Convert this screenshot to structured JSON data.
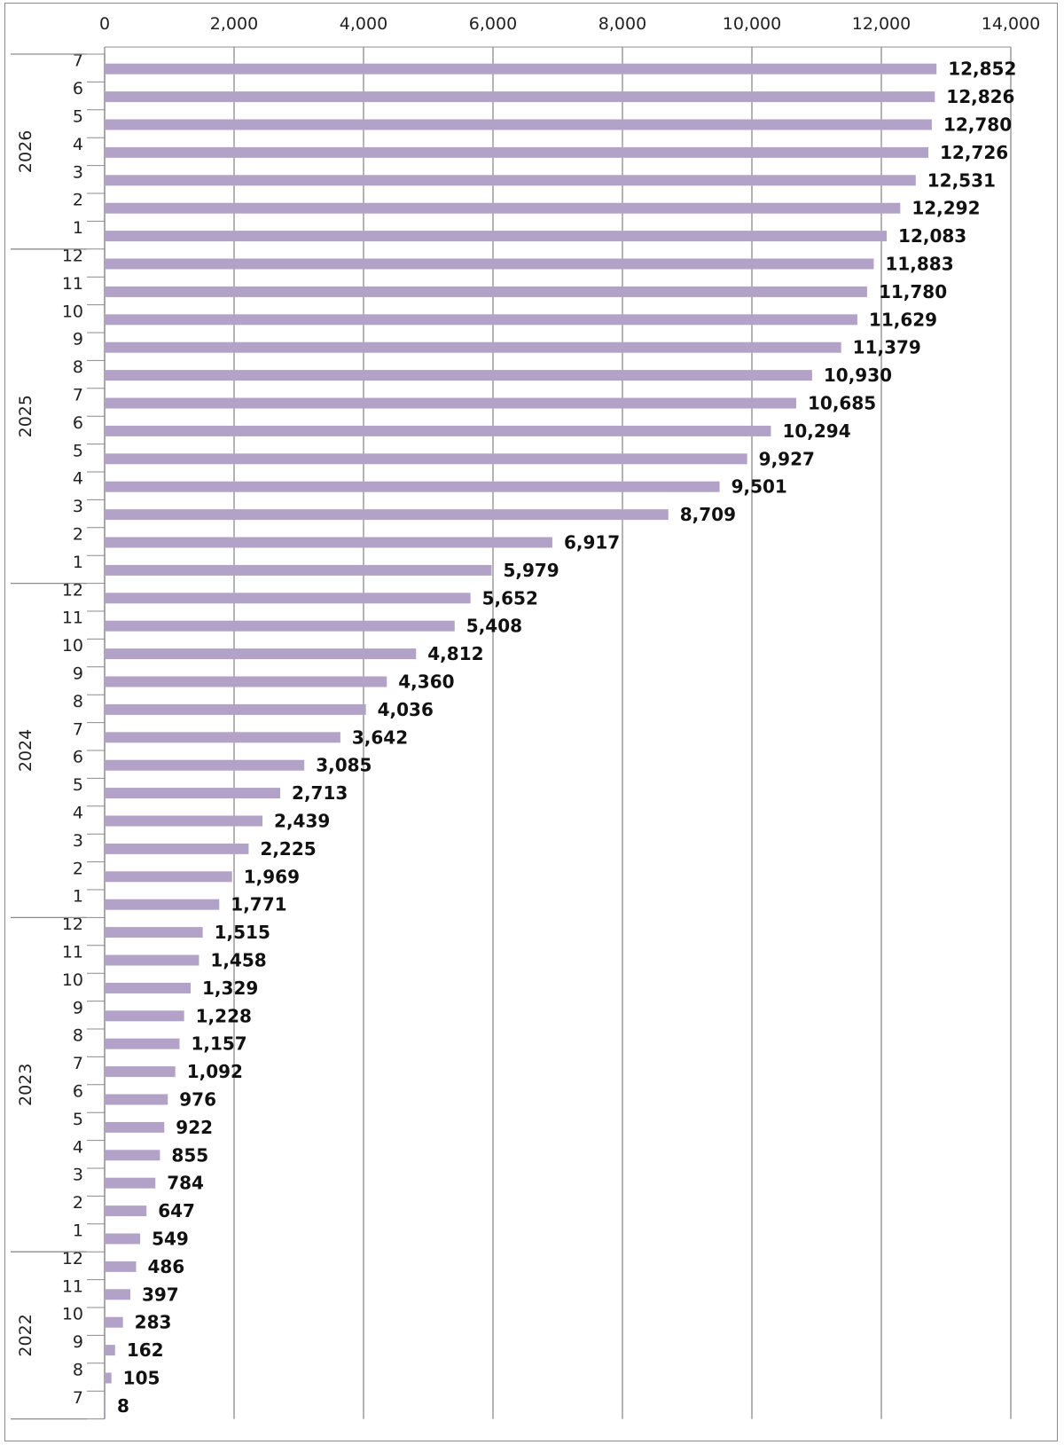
{
  "chart_data": {
    "type": "bar",
    "orientation": "horizontal",
    "title": "",
    "xlabel": "",
    "ylabel": "",
    "xlim": [
      0,
      14000
    ],
    "x_ticks": [
      "0",
      "2,000",
      "4,000",
      "6,000",
      "8,000",
      "10,000",
      "12,000",
      "14,000"
    ],
    "x_tick_values": [
      0,
      2000,
      4000,
      6000,
      8000,
      10000,
      12000,
      14000
    ],
    "x_axis_position": "top",
    "grid": "vertical",
    "legend": "none",
    "bar_color": "#b3a2c8",
    "categories": [
      {
        "year": "2026",
        "month": "7",
        "value": 12852,
        "label": "12,852"
      },
      {
        "year": "2026",
        "month": "6",
        "value": 12826,
        "label": "12,826"
      },
      {
        "year": "2026",
        "month": "5",
        "value": 12780,
        "label": "12,780"
      },
      {
        "year": "2026",
        "month": "4",
        "value": 12726,
        "label": "12,726"
      },
      {
        "year": "2026",
        "month": "3",
        "value": 12531,
        "label": "12,531"
      },
      {
        "year": "2026",
        "month": "2",
        "value": 12292,
        "label": "12,292"
      },
      {
        "year": "2026",
        "month": "1",
        "value": 12083,
        "label": "12,083"
      },
      {
        "year": "2025",
        "month": "12",
        "value": 11883,
        "label": "11,883"
      },
      {
        "year": "2025",
        "month": "11",
        "value": 11780,
        "label": "11,780"
      },
      {
        "year": "2025",
        "month": "10",
        "value": 11629,
        "label": "11,629"
      },
      {
        "year": "2025",
        "month": "9",
        "value": 11379,
        "label": "11,379"
      },
      {
        "year": "2025",
        "month": "8",
        "value": 10930,
        "label": "10,930"
      },
      {
        "year": "2025",
        "month": "7",
        "value": 10685,
        "label": "10,685"
      },
      {
        "year": "2025",
        "month": "6",
        "value": 10294,
        "label": "10,294"
      },
      {
        "year": "2025",
        "month": "5",
        "value": 9927,
        "label": "9,927"
      },
      {
        "year": "2025",
        "month": "4",
        "value": 9501,
        "label": "9,501"
      },
      {
        "year": "2025",
        "month": "3",
        "value": 8709,
        "label": "8,709"
      },
      {
        "year": "2025",
        "month": "2",
        "value": 6917,
        "label": "6,917"
      },
      {
        "year": "2025",
        "month": "1",
        "value": 5979,
        "label": "5,979"
      },
      {
        "year": "2024",
        "month": "12",
        "value": 5652,
        "label": "5,652"
      },
      {
        "year": "2024",
        "month": "11",
        "value": 5408,
        "label": "5,408"
      },
      {
        "year": "2024",
        "month": "10",
        "value": 4812,
        "label": "4,812"
      },
      {
        "year": "2024",
        "month": "9",
        "value": 4360,
        "label": "4,360"
      },
      {
        "year": "2024",
        "month": "8",
        "value": 4036,
        "label": "4,036"
      },
      {
        "year": "2024",
        "month": "7",
        "value": 3642,
        "label": "3,642"
      },
      {
        "year": "2024",
        "month": "6",
        "value": 3085,
        "label": "3,085"
      },
      {
        "year": "2024",
        "month": "5",
        "value": 2713,
        "label": "2,713"
      },
      {
        "year": "2024",
        "month": "4",
        "value": 2439,
        "label": "2,439"
      },
      {
        "year": "2024",
        "month": "3",
        "value": 2225,
        "label": "2,225"
      },
      {
        "year": "2024",
        "month": "2",
        "value": 1969,
        "label": "1,969"
      },
      {
        "year": "2024",
        "month": "1",
        "value": 1771,
        "label": "1,771"
      },
      {
        "year": "2023",
        "month": "12",
        "value": 1515,
        "label": "1,515"
      },
      {
        "year": "2023",
        "month": "11",
        "value": 1458,
        "label": "1,458"
      },
      {
        "year": "2023",
        "month": "10",
        "value": 1329,
        "label": "1,329"
      },
      {
        "year": "2023",
        "month": "9",
        "value": 1228,
        "label": "1,228"
      },
      {
        "year": "2023",
        "month": "8",
        "value": 1157,
        "label": "1,157"
      },
      {
        "year": "2023",
        "month": "7",
        "value": 1092,
        "label": "1,092"
      },
      {
        "year": "2023",
        "month": "6",
        "value": 976,
        "label": "976"
      },
      {
        "year": "2023",
        "month": "5",
        "value": 922,
        "label": "922"
      },
      {
        "year": "2023",
        "month": "4",
        "value": 855,
        "label": "855"
      },
      {
        "year": "2023",
        "month": "3",
        "value": 784,
        "label": "784"
      },
      {
        "year": "2023",
        "month": "2",
        "value": 647,
        "label": "647"
      },
      {
        "year": "2023",
        "month": "1",
        "value": 549,
        "label": "549"
      },
      {
        "year": "2022",
        "month": "12",
        "value": 486,
        "label": "486"
      },
      {
        "year": "2022",
        "month": "11",
        "value": 397,
        "label": "397"
      },
      {
        "year": "2022",
        "month": "10",
        "value": 283,
        "label": "283"
      },
      {
        "year": "2022",
        "month": "9",
        "value": 162,
        "label": "162"
      },
      {
        "year": "2022",
        "month": "8",
        "value": 105,
        "label": "105"
      },
      {
        "year": "2022",
        "month": "7",
        "value": 8,
        "label": "8"
      }
    ],
    "years": [
      "2026",
      "2025",
      "2024",
      "2023",
      "2022"
    ]
  }
}
